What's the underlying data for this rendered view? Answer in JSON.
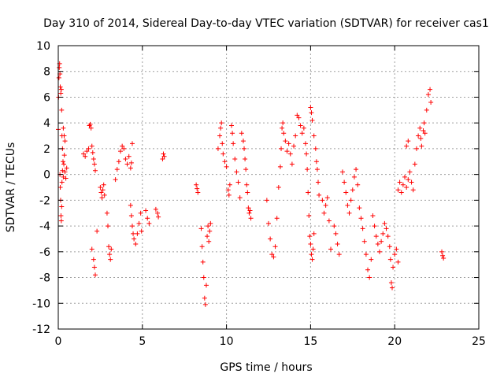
{
  "chart_data": {
    "type": "scatter",
    "title": "Day 310 of 2014, Sidereal Day-to-day VTEC variation (SDTVAR) for receiver cas1",
    "xlabel": "GPS time / hours",
    "ylabel": "SDTVAR / TECUs",
    "xlim": [
      0,
      25
    ],
    "ylim": [
      -12,
      10
    ],
    "x_ticks": [
      0,
      5,
      10,
      15,
      20,
      25
    ],
    "y_ticks": [
      -12,
      -10,
      -8,
      -6,
      -4,
      -2,
      0,
      2,
      4,
      6,
      8,
      10
    ],
    "grid": true,
    "marker": "+",
    "marker_color": "#ff0000",
    "series": [
      {
        "name": "cas1",
        "points": [
          [
            0.0,
            3.5
          ],
          [
            0.02,
            6.0
          ],
          [
            0.04,
            7.5
          ],
          [
            0.06,
            8.3
          ],
          [
            0.08,
            8.6
          ],
          [
            0.1,
            7.8
          ],
          [
            0.12,
            6.8
          ],
          [
            0.15,
            6.3
          ],
          [
            0.18,
            6.6
          ],
          [
            0.2,
            5.0
          ],
          [
            0.22,
            3.0
          ],
          [
            0.25,
            2.0
          ],
          [
            0.28,
            1.0
          ],
          [
            0.1,
            0.0
          ],
          [
            0.12,
            -1.0
          ],
          [
            0.14,
            -2.0
          ],
          [
            0.16,
            -3.2
          ],
          [
            0.18,
            -3.6
          ],
          [
            0.2,
            -2.5
          ],
          [
            0.22,
            -0.6
          ],
          [
            0.25,
            0.3
          ],
          [
            0.3,
            -0.2
          ],
          [
            0.33,
            0.8
          ],
          [
            0.36,
            1.5
          ],
          [
            0.4,
            0.2
          ],
          [
            0.45,
            -0.3
          ],
          [
            0.5,
            0.5
          ],
          [
            0.3,
            3.6
          ],
          [
            0.35,
            3.0
          ],
          [
            0.4,
            2.6
          ],
          [
            1.5,
            1.6
          ],
          [
            1.6,
            1.4
          ],
          [
            1.7,
            1.8
          ],
          [
            1.8,
            2.0
          ],
          [
            1.85,
            3.8
          ],
          [
            1.9,
            3.9
          ],
          [
            1.95,
            3.6
          ],
          [
            2.0,
            2.2
          ],
          [
            2.05,
            1.7
          ],
          [
            2.1,
            1.2
          ],
          [
            2.15,
            0.8
          ],
          [
            2.2,
            0.3
          ],
          [
            2.0,
            -5.8
          ],
          [
            2.1,
            -6.6
          ],
          [
            2.15,
            -7.2
          ],
          [
            2.2,
            -7.8
          ],
          [
            2.3,
            -4.4
          ],
          [
            2.5,
            -1.0
          ],
          [
            2.55,
            -1.4
          ],
          [
            2.6,
            -1.8
          ],
          [
            2.65,
            -1.2
          ],
          [
            2.7,
            -0.8
          ],
          [
            2.75,
            -1.6
          ],
          [
            2.9,
            -3.0
          ],
          [
            2.95,
            -4.0
          ],
          [
            3.0,
            -5.6
          ],
          [
            3.05,
            -6.2
          ],
          [
            3.1,
            -6.6
          ],
          [
            3.15,
            -5.8
          ],
          [
            3.4,
            -0.4
          ],
          [
            3.5,
            0.4
          ],
          [
            3.6,
            1.0
          ],
          [
            3.7,
            1.8
          ],
          [
            3.8,
            2.2
          ],
          [
            3.9,
            2.0
          ],
          [
            4.0,
            1.2
          ],
          [
            4.1,
            0.8
          ],
          [
            4.2,
            1.4
          ],
          [
            4.3,
            0.5
          ],
          [
            4.35,
            0.9
          ],
          [
            4.4,
            2.4
          ],
          [
            4.3,
            -2.4
          ],
          [
            4.35,
            -3.2
          ],
          [
            4.4,
            -4.0
          ],
          [
            4.45,
            -4.6
          ],
          [
            4.5,
            -5.0
          ],
          [
            4.6,
            -5.4
          ],
          [
            4.7,
            -4.6
          ],
          [
            4.8,
            -3.8
          ],
          [
            4.9,
            -3.0
          ],
          [
            4.95,
            -4.4
          ],
          [
            5.2,
            -2.8
          ],
          [
            5.3,
            -3.4
          ],
          [
            5.4,
            -3.8
          ],
          [
            5.8,
            -2.7
          ],
          [
            5.9,
            -3.0
          ],
          [
            5.95,
            -3.3
          ],
          [
            6.2,
            1.2
          ],
          [
            6.25,
            1.6
          ],
          [
            6.3,
            1.4
          ],
          [
            8.2,
            -0.8
          ],
          [
            8.25,
            -1.1
          ],
          [
            8.3,
            -1.4
          ],
          [
            8.5,
            -4.2
          ],
          [
            8.55,
            -5.6
          ],
          [
            8.6,
            -6.8
          ],
          [
            8.65,
            -8.0
          ],
          [
            8.7,
            -9.6
          ],
          [
            8.75,
            -10.1
          ],
          [
            8.8,
            -8.6
          ],
          [
            8.85,
            -4.8
          ],
          [
            8.9,
            -4.0
          ],
          [
            8.95,
            -5.2
          ],
          [
            9.0,
            -4.4
          ],
          [
            9.05,
            -3.8
          ],
          [
            9.5,
            2.0
          ],
          [
            9.6,
            3.0
          ],
          [
            9.65,
            3.6
          ],
          [
            9.7,
            4.0
          ],
          [
            9.75,
            2.4
          ],
          [
            9.8,
            1.6
          ],
          [
            9.9,
            1.0
          ],
          [
            10.0,
            0.6
          ],
          [
            10.1,
            -1.2
          ],
          [
            10.15,
            -1.6
          ],
          [
            10.2,
            -0.8
          ],
          [
            10.3,
            3.8
          ],
          [
            10.35,
            3.2
          ],
          [
            10.4,
            2.4
          ],
          [
            10.5,
            1.2
          ],
          [
            10.6,
            0.2
          ],
          [
            10.7,
            -0.6
          ],
          [
            10.8,
            -1.8
          ],
          [
            10.9,
            3.2
          ],
          [
            11.0,
            2.6
          ],
          [
            11.05,
            2.0
          ],
          [
            11.1,
            1.2
          ],
          [
            11.15,
            0.4
          ],
          [
            11.2,
            -0.8
          ],
          [
            11.25,
            -1.4
          ],
          [
            11.3,
            -2.6
          ],
          [
            11.35,
            -3.0
          ],
          [
            11.4,
            -2.8
          ],
          [
            11.45,
            -3.4
          ],
          [
            12.4,
            -2.0
          ],
          [
            12.5,
            -3.8
          ],
          [
            12.6,
            -5.0
          ],
          [
            12.7,
            -6.2
          ],
          [
            12.8,
            -6.4
          ],
          [
            12.9,
            -5.6
          ],
          [
            13.0,
            -3.4
          ],
          [
            13.1,
            -1.0
          ],
          [
            13.2,
            0.6
          ],
          [
            13.25,
            2.0
          ],
          [
            13.3,
            3.6
          ],
          [
            13.35,
            4.0
          ],
          [
            13.4,
            3.2
          ],
          [
            13.5,
            2.6
          ],
          [
            13.6,
            1.8
          ],
          [
            13.7,
            2.4
          ],
          [
            13.8,
            1.6
          ],
          [
            13.9,
            0.8
          ],
          [
            14.0,
            2.2
          ],
          [
            14.1,
            3.0
          ],
          [
            14.2,
            4.6
          ],
          [
            14.3,
            4.4
          ],
          [
            14.4,
            3.8
          ],
          [
            14.5,
            3.2
          ],
          [
            14.6,
            3.6
          ],
          [
            14.7,
            2.4
          ],
          [
            14.75,
            1.6
          ],
          [
            14.8,
            0.4
          ],
          [
            14.85,
            -1.4
          ],
          [
            14.9,
            -3.2
          ],
          [
            14.95,
            -4.8
          ],
          [
            15.0,
            -5.4
          ],
          [
            15.05,
            -6.2
          ],
          [
            15.1,
            -6.6
          ],
          [
            15.15,
            -5.8
          ],
          [
            15.2,
            -4.6
          ],
          [
            15.0,
            5.2
          ],
          [
            15.05,
            4.8
          ],
          [
            15.1,
            4.2
          ],
          [
            15.2,
            3.0
          ],
          [
            15.3,
            2.0
          ],
          [
            15.35,
            1.0
          ],
          [
            15.4,
            0.4
          ],
          [
            15.45,
            -0.6
          ],
          [
            15.5,
            -1.6
          ],
          [
            15.7,
            -2.0
          ],
          [
            15.8,
            -3.0
          ],
          [
            15.9,
            -2.4
          ],
          [
            16.0,
            -1.8
          ],
          [
            16.1,
            -3.6
          ],
          [
            16.2,
            -5.8
          ],
          [
            16.4,
            -4.0
          ],
          [
            16.5,
            -4.6
          ],
          [
            16.6,
            -5.4
          ],
          [
            16.7,
            -6.2
          ],
          [
            16.9,
            0.2
          ],
          [
            17.0,
            -0.6
          ],
          [
            17.1,
            -1.4
          ],
          [
            17.2,
            -2.4
          ],
          [
            17.3,
            -3.0
          ],
          [
            17.4,
            -2.0
          ],
          [
            17.5,
            -1.2
          ],
          [
            17.6,
            -0.2
          ],
          [
            17.7,
            0.4
          ],
          [
            17.8,
            -0.8
          ],
          [
            17.9,
            -2.6
          ],
          [
            18.0,
            -3.4
          ],
          [
            18.1,
            -4.2
          ],
          [
            18.2,
            -5.2
          ],
          [
            18.3,
            -6.2
          ],
          [
            18.4,
            -7.4
          ],
          [
            18.5,
            -8.0
          ],
          [
            18.6,
            -6.6
          ],
          [
            18.7,
            -3.2
          ],
          [
            18.8,
            -4.0
          ],
          [
            18.9,
            -4.8
          ],
          [
            19.0,
            -5.4
          ],
          [
            19.1,
            -6.0
          ],
          [
            19.2,
            -5.2
          ],
          [
            19.3,
            -4.6
          ],
          [
            19.4,
            -3.8
          ],
          [
            19.5,
            -4.2
          ],
          [
            19.6,
            -4.8
          ],
          [
            19.7,
            -5.6
          ],
          [
            19.75,
            -6.6
          ],
          [
            19.8,
            -8.4
          ],
          [
            19.85,
            -8.8
          ],
          [
            19.9,
            -7.2
          ],
          [
            20.0,
            -6.2
          ],
          [
            20.1,
            -5.8
          ],
          [
            20.2,
            -6.8
          ],
          [
            20.2,
            -1.2
          ],
          [
            20.3,
            -0.6
          ],
          [
            20.4,
            -1.4
          ],
          [
            20.5,
            -0.8
          ],
          [
            20.6,
            -0.2
          ],
          [
            20.7,
            -1.0
          ],
          [
            20.8,
            -0.4
          ],
          [
            20.9,
            0.2
          ],
          [
            21.0,
            -0.6
          ],
          [
            21.1,
            -1.2
          ],
          [
            21.2,
            0.8
          ],
          [
            21.3,
            2.0
          ],
          [
            21.4,
            3.0
          ],
          [
            21.5,
            3.6
          ],
          [
            21.55,
            2.8
          ],
          [
            21.6,
            2.2
          ],
          [
            21.7,
            3.4
          ],
          [
            21.75,
            4.0
          ],
          [
            21.8,
            3.2
          ],
          [
            21.9,
            5.0
          ],
          [
            22.0,
            6.2
          ],
          [
            22.1,
            6.6
          ],
          [
            22.15,
            5.6
          ],
          [
            20.7,
            2.2
          ],
          [
            20.8,
            2.6
          ],
          [
            22.8,
            -6.0
          ],
          [
            22.85,
            -6.3
          ],
          [
            22.9,
            -6.5
          ]
        ]
      }
    ]
  }
}
